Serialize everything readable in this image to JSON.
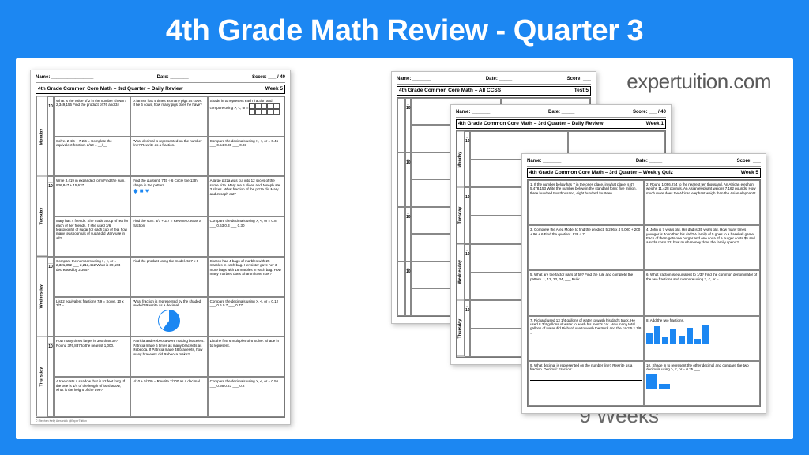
{
  "title": "4th Grade Math Review - Quarter 3",
  "brand": "expertuition.com",
  "weeks_label": "9 Weeks",
  "colors": {
    "background": "#1c87f2",
    "canvas": "#ffffff",
    "text_muted": "#6a6a6a",
    "worksheet_border": "#bfbfbf",
    "accent": "#1c87f2"
  },
  "main_page": {
    "name_label": "Name: ________________",
    "date_label": "Date: _______",
    "score_label": "Score: ___ / 40",
    "sheet_title": "4th Grade Common Core Math – 3rd Quarter – Daily Review",
    "week": "Week 5",
    "days": [
      "Monday",
      "Tuesday",
      "Wednesday",
      "Thursday"
    ],
    "score_denom": "10",
    "rows": [
      [
        "What is the value of 2 in the number shown? 2,349,156\n\nFind the product of 76 and 34",
        "A farmer has 4 times as many pigs as cows. If he 6 cows, how many pigs does he have?",
        "Shade in to represent each fraction and compare using >, <, or ="
      ],
      [
        "Solve.\n2 4/6 + 7 2/6 =\nComplete the equivalent fraction.\n2/10 = __/__",
        "What decimal is represented on the number line? Rewrite as a fraction.",
        "Compare the decimals using >, <, or =\n0.45 ___ 0.54\n0.30 ___ 0.03"
      ],
      [
        "Write 3,419 in expanded form\n\nFind the sum. 936,847 + 15,637",
        "Find the quotient. 745 ÷ 6\n\nCircle the 13th shape in the pattern.",
        "A large pizza was cut into 12 slices of the same size. Mary ate 5 slices and Joseph ate 3 slices. What fraction of the pizza did Mary and Joseph eat?"
      ],
      [
        "Mary has 4 friends. She made a cup of tea for each of her friends. If she used 3/6 teaspoonful of sugar for each cup of tea, how many teaspoonfuls of sugar did Mary use in all?",
        "Find the sum.\n3/7 + 2/7 =\n\nRewrite 0.86 as a fraction.",
        "Compare the decimals using >, <, or =\n0.8 ___ 0.63\n0.3 ___ 0.30"
      ],
      [
        "Compare the numbers using >, <, or =\n2,321,352 ___ 2,213,452\nWhat is 39,104 decreased by 2,365?",
        "Find the product using the model. 537 x 6",
        "Sharon had 4 bags of marbles with 25 marbles in each bag. Her sister gave her 3 more bags with 18 marbles in each bag. How many marbles does Sharon have now?"
      ],
      [
        "List 2 equivalent fractions\n7/9 =\nSolve. 10 x 3/7 =",
        "What fraction is represented by the shaded model?\nRewrite as a decimal.",
        "Compare the decimals using >, <, or =\n0.12 ___ 0.6\n0.7 ___ 0.77"
      ],
      [
        "How many times larger is 300 than 30?\n\nRound 376,837 to the nearest 1,000.",
        "Patricia and Rebecca were making bracelets. Patricia made 6 times as many bracelets as Rebecca. If Patricia made 48 bracelets, how many bracelets did Rebecca make?",
        "List the first 6 multiples of 6\n\nSolve. Shade in to represent."
      ],
      [
        "A tree casts a shadow that is 52 feet long. If the tree is 1/4 of the length of its shadow, what is the height of the tree?",
        "4/10 + 5/100 =\nRewrite 7/100 as a decimal.",
        "Compare the decimals using >, <, or =\n0.56 ___ 0.66\n0.23 ___ 0.2"
      ]
    ],
    "copyright": "© Stephen Kelly Aleshnick  @ExperTuition"
  },
  "page2": {
    "name_label": "Name: _______",
    "date_label": "Date: _____",
    "score_label": "Score: ___",
    "sheet_title": "4th Grade Common Core Math – All CCSS",
    "week": "Test 5"
  },
  "page3": {
    "name_label": "Name: _______",
    "date_label": "Date: _____",
    "score_label": "Score: ___ / 40",
    "sheet_title": "4th Grade Common Core Math – 3rd Quarter – Daily Review",
    "week": "Week 1",
    "days": [
      "Monday",
      "Tuesday",
      "Wednesday",
      "Thursday"
    ]
  },
  "page4": {
    "name_label": "Name: _______",
    "date_label": "Date: _____",
    "score_label": "Score: ___",
    "sheet_title": "4th Grade Common Core Math – 3rd Quarter – Weekly Quiz",
    "week": "Week 5",
    "cells": [
      "1. If the number below has 7 in the ones place, in what place is 4?\n5,478,153\nWrite the number below in the standard form:\nfive million, three hundred two thousand, eight hundred fourteen.",
      "2. Round 1,096,274 to the nearest ten thousand.\n\nAn African elephant weighs 11,428 pounds. An Asian elephant weighs 7,162 pounds. How much more does the African elephant weigh than the Asian elephant?",
      "3. Complete the Area Model to find the product. 5,296 x 4\n5,000 + 200 + 90 + 6\nFind the quotient. 938 ÷ 7",
      "4. John is 7 years old. His dad is 35 years old. How many times younger is John than his dad?\n\nA family of 5 goes to a baseball game. Each of them gets one burger and one soda. If a burger costs $5 and a soda costs $2, how much money does the family spend?",
      "5. What are the factor pairs of 50?\n\nFind the rule and complete the pattern.\n1, 12, 23, 34, ___\nRule:",
      "6. What fraction is equivalent to 1/3?\n\nFind the common denominator of the two fractions and compare using >, <, or =",
      "7. Richard used 13 1/4 gallons of water to wash his dad's truck. He used 8 3/4 gallons of water to wash his mom's car. How many total gallons of water did Richard use to wash the truck and the car?\n5 x 1/8 =",
      "8. Add the two fractions.",
      "9. What decimal is represented on the number line? Rewrite as a fraction.\nDecimal:      Fraction:",
      "10. Shade in to represent the other decimal and compare the two decimals using >, <, or =\n0.25 ___"
    ]
  }
}
